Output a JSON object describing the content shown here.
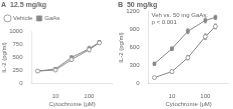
{
  "chart_data": [
    {
      "type": "line",
      "title": "A  12.5 mg/kg",
      "x": [
        3,
        10,
        30,
        100,
        200
      ],
      "series": [
        {
          "name": "Vehicle",
          "color": "#888888",
          "marker": "circle-open",
          "values": [
            240,
            260,
            460,
            650,
            780
          ],
          "errors": [
            20,
            25,
            30,
            40,
            30
          ]
        },
        {
          "name": "GaAs",
          "color": "#888888",
          "marker": "square",
          "values": [
            240,
            280,
            500,
            670,
            790
          ],
          "errors": [
            20,
            30,
            35,
            45,
            35
          ]
        }
      ],
      "xlabel": "Cytochrome (μM)",
      "ylabel": "IL-2 (pg/ml)",
      "log": "x",
      "xlim": [
        2,
        500
      ],
      "xticks": [
        10,
        100
      ],
      "ylim": [
        0,
        1000
      ],
      "yticks": [
        0,
        250,
        500,
        750,
        1000
      ],
      "grid": false,
      "legend": "upper left"
    },
    {
      "type": "line",
      "title": "B  50 mg/kg",
      "x": [
        3,
        10,
        30,
        100,
        200
      ],
      "series": [
        {
          "name": "Vehicle",
          "color": "#888888",
          "marker": "circle-open",
          "values": [
            100,
            200,
            430,
            780,
            950
          ],
          "errors": [
            15,
            25,
            35,
            45,
            40
          ]
        },
        {
          "name": "GaAs",
          "color": "#888888",
          "marker": "square",
          "values": [
            330,
            580,
            870,
            1050,
            1100
          ],
          "errors": [
            25,
            30,
            40,
            40,
            35
          ]
        }
      ],
      "xlabel": "Cytochrome (μM)",
      "ylabel": "IL-2 (pg/ml)",
      "log": "x",
      "xlim": [
        2,
        500
      ],
      "xticks": [
        10,
        100
      ],
      "ylim": [
        0,
        1200
      ],
      "yticks": [
        0,
        300,
        600,
        900,
        1200
      ],
      "grid": false,
      "annotation": "Veh vs. 50 mg GaAs:\np < 0.001"
    }
  ]
}
